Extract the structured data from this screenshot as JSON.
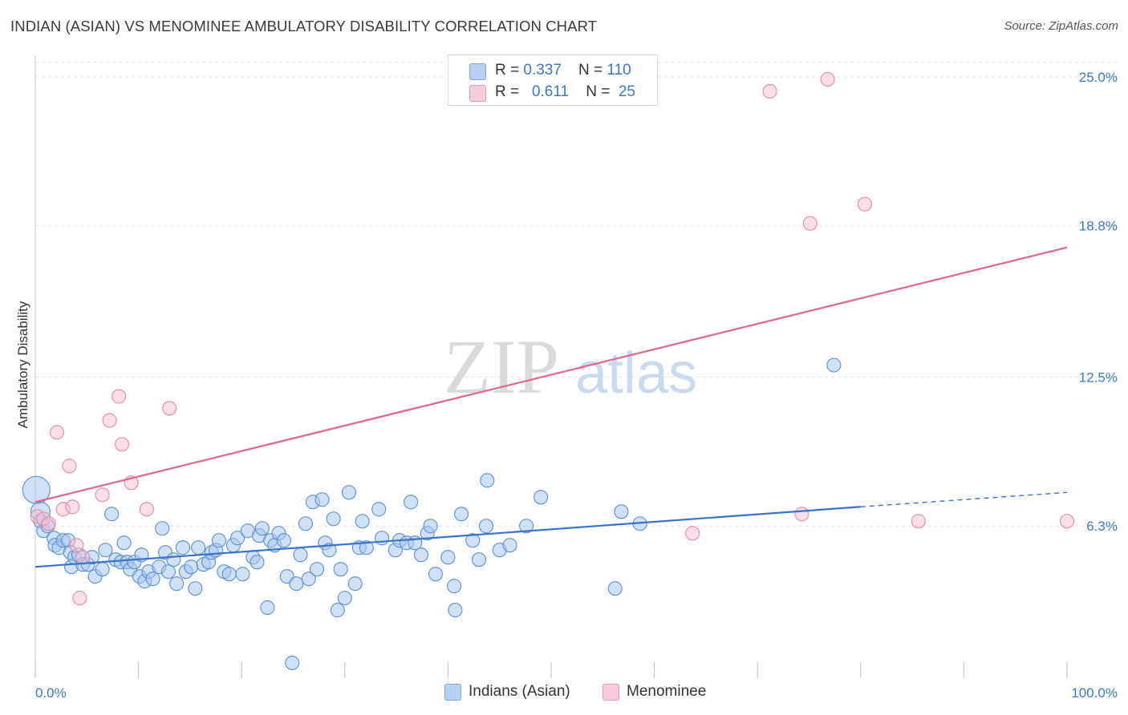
{
  "header": {
    "title": "INDIAN (ASIAN) VS MENOMINEE AMBULATORY DISABILITY CORRELATION CHART",
    "source": "Source: ZipAtlas.com"
  },
  "watermark": {
    "part1": "ZIP",
    "part2": "atlas"
  },
  "legend": {
    "rows": [
      {
        "r_label": "R = ",
        "r_value": "0.337",
        "n_label": "N = ",
        "n_value": "110"
      },
      {
        "r_label": "R = ",
        "r_value": "0.611",
        "n_label": "N = ",
        "n_value": " 25"
      }
    ]
  },
  "colors": {
    "blue_fill": "#a9c7ee",
    "blue_stroke": "#5a8fd4",
    "blue_line": "#3a72c9",
    "pink_fill": "#f6c0d0",
    "pink_stroke": "#e08aa5",
    "pink_line": "#e0668f",
    "axis_label": "#3b78c4",
    "grid": "#e3e3e3"
  },
  "chart_data": {
    "type": "scatter",
    "title": "INDIAN (ASIAN) VS MENOMINEE AMBULATORY DISABILITY CORRELATION CHART",
    "xlabel": "",
    "ylabel": "Ambulatory Disability",
    "xlim": [
      0,
      100
    ],
    "ylim": [
      0,
      25.9
    ],
    "x_tick_labels": [
      "0.0%",
      "100.0%"
    ],
    "y_ticks": [
      6.3,
      12.5,
      18.8,
      25.0
    ],
    "y_tick_labels": [
      "6.3%",
      "12.5%",
      "18.8%",
      "25.0%"
    ],
    "grid": true,
    "legend_position": "top-center",
    "series": [
      {
        "name": "Indians (Asian)",
        "color": "#a9c7ee",
        "r": 0.337,
        "n": 110,
        "trend": {
          "x0": 0,
          "y0": 4.6,
          "x1": 80,
          "y1": 7.1,
          "dashed_to_x": 100,
          "dashed_to_y": 7.7
        },
        "points": [
          [
            0.1,
            7.8
          ],
          [
            0.5,
            6.9
          ],
          [
            0.5,
            6.5
          ],
          [
            0.8,
            6.1
          ],
          [
            1.2,
            6.3
          ],
          [
            1.8,
            5.8
          ],
          [
            1.9,
            5.5
          ],
          [
            2.3,
            5.4
          ],
          [
            2.7,
            5.7
          ],
          [
            3.2,
            5.7
          ],
          [
            3.4,
            5.2
          ],
          [
            3.5,
            4.6
          ],
          [
            3.8,
            5.0
          ],
          [
            4.2,
            5.1
          ],
          [
            4.6,
            4.7
          ],
          [
            5.1,
            4.7
          ],
          [
            5.5,
            5.0
          ],
          [
            5.8,
            4.2
          ],
          [
            6.5,
            4.5
          ],
          [
            6.8,
            5.3
          ],
          [
            7.4,
            6.8
          ],
          [
            7.8,
            4.9
          ],
          [
            8.3,
            4.8
          ],
          [
            8.6,
            5.6
          ],
          [
            8.9,
            4.8
          ],
          [
            9.2,
            4.5
          ],
          [
            9.6,
            4.8
          ],
          [
            10.1,
            4.2
          ],
          [
            10.3,
            5.1
          ],
          [
            10.6,
            4.0
          ],
          [
            11.0,
            4.4
          ],
          [
            11.4,
            4.1
          ],
          [
            12.0,
            4.6
          ],
          [
            12.3,
            6.2
          ],
          [
            12.6,
            5.2
          ],
          [
            12.9,
            4.4
          ],
          [
            13.4,
            4.9
          ],
          [
            13.7,
            3.9
          ],
          [
            14.3,
            5.4
          ],
          [
            14.6,
            4.4
          ],
          [
            15.1,
            4.6
          ],
          [
            15.5,
            3.7
          ],
          [
            15.8,
            5.4
          ],
          [
            16.3,
            4.7
          ],
          [
            16.8,
            4.8
          ],
          [
            17.1,
            5.2
          ],
          [
            17.5,
            5.3
          ],
          [
            17.8,
            5.7
          ],
          [
            18.3,
            4.4
          ],
          [
            18.8,
            4.3
          ],
          [
            19.2,
            5.5
          ],
          [
            19.6,
            5.8
          ],
          [
            20.1,
            4.3
          ],
          [
            20.6,
            6.1
          ],
          [
            21.1,
            5.0
          ],
          [
            21.5,
            4.8
          ],
          [
            21.7,
            5.9
          ],
          [
            22.0,
            6.2
          ],
          [
            22.5,
            2.9
          ],
          [
            22.8,
            5.7
          ],
          [
            23.2,
            5.5
          ],
          [
            23.6,
            6.0
          ],
          [
            24.1,
            5.7
          ],
          [
            24.4,
            4.2
          ],
          [
            24.9,
            0.6
          ],
          [
            25.3,
            3.9
          ],
          [
            25.7,
            5.1
          ],
          [
            26.2,
            6.4
          ],
          [
            26.5,
            4.1
          ],
          [
            26.9,
            7.3
          ],
          [
            27.3,
            4.5
          ],
          [
            27.8,
            7.4
          ],
          [
            28.1,
            5.6
          ],
          [
            28.5,
            5.3
          ],
          [
            28.9,
            6.6
          ],
          [
            29.3,
            2.8
          ],
          [
            29.6,
            4.5
          ],
          [
            30.0,
            3.3
          ],
          [
            30.4,
            7.7
          ],
          [
            31.0,
            3.9
          ],
          [
            31.4,
            5.4
          ],
          [
            31.7,
            6.5
          ],
          [
            32.1,
            5.4
          ],
          [
            33.3,
            7.0
          ],
          [
            33.6,
            5.8
          ],
          [
            34.9,
            5.3
          ],
          [
            35.3,
            5.7
          ],
          [
            36.0,
            5.6
          ],
          [
            36.4,
            7.3
          ],
          [
            36.8,
            5.6
          ],
          [
            37.4,
            5.1
          ],
          [
            38.0,
            6.0
          ],
          [
            38.3,
            6.3
          ],
          [
            38.8,
            4.3
          ],
          [
            40.0,
            5.0
          ],
          [
            40.6,
            3.8
          ],
          [
            40.7,
            2.8
          ],
          [
            41.3,
            6.8
          ],
          [
            42.4,
            5.7
          ],
          [
            43.0,
            4.9
          ],
          [
            43.7,
            6.3
          ],
          [
            43.8,
            8.2
          ],
          [
            45.0,
            5.3
          ],
          [
            46.0,
            5.5
          ],
          [
            47.6,
            6.3
          ],
          [
            49.0,
            7.5
          ],
          [
            56.2,
            3.7
          ],
          [
            56.8,
            6.9
          ],
          [
            58.6,
            6.4
          ],
          [
            77.4,
            13.0
          ]
        ]
      },
      {
        "name": "Menominee",
        "color": "#f6c0d0",
        "r": 0.611,
        "n": 25,
        "trend": {
          "x0": 0,
          "y0": 7.3,
          "x1": 100,
          "y1": 17.9
        },
        "points": [
          [
            0.2,
            6.7
          ],
          [
            0.8,
            6.6
          ],
          [
            1.3,
            6.4
          ],
          [
            2.1,
            10.2
          ],
          [
            2.7,
            7.0
          ],
          [
            3.3,
            8.8
          ],
          [
            3.6,
            7.1
          ],
          [
            4.0,
            5.5
          ],
          [
            4.3,
            3.3
          ],
          [
            4.6,
            5.0
          ],
          [
            6.5,
            7.6
          ],
          [
            7.2,
            10.7
          ],
          [
            8.1,
            11.7
          ],
          [
            8.4,
            9.7
          ],
          [
            9.3,
            8.1
          ],
          [
            10.8,
            7.0
          ],
          [
            13.0,
            11.2
          ],
          [
            63.7,
            6.0
          ],
          [
            71.2,
            24.4
          ],
          [
            74.3,
            6.8
          ],
          [
            75.1,
            18.9
          ],
          [
            76.8,
            24.9
          ],
          [
            80.4,
            19.7
          ],
          [
            85.6,
            6.5
          ],
          [
            100.0,
            6.5
          ]
        ]
      }
    ]
  }
}
